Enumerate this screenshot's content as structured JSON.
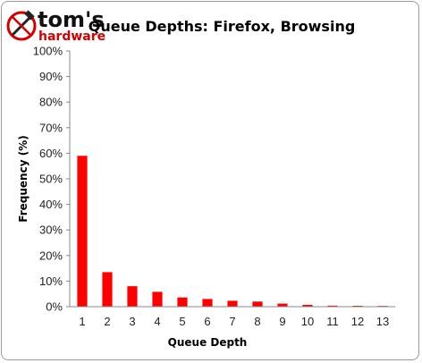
{
  "logo": {
    "name": "tom's",
    "sub": "hardware",
    "icon": "hammer-screwdriver-icon",
    "accent": "#d40000"
  },
  "chart_data": {
    "type": "bar",
    "title": "Queue Depths: Firefox, Browsing",
    "xlabel": "Queue Depth",
    "ylabel": "Frequency (%)",
    "categories": [
      "1",
      "2",
      "3",
      "4",
      "5",
      "6",
      "7",
      "8",
      "9",
      "10",
      "11",
      "12",
      "13"
    ],
    "values": [
      59,
      13.5,
      8,
      5.8,
      3.6,
      3.0,
      2.3,
      2.0,
      1.2,
      0.7,
      0.4,
      0.35,
      0.3
    ],
    "ylim": [
      0,
      100
    ],
    "ytick_step": 10,
    "ytick_suffix": "%",
    "bar_color": "#ff0000",
    "grid": false,
    "legend": "none"
  }
}
